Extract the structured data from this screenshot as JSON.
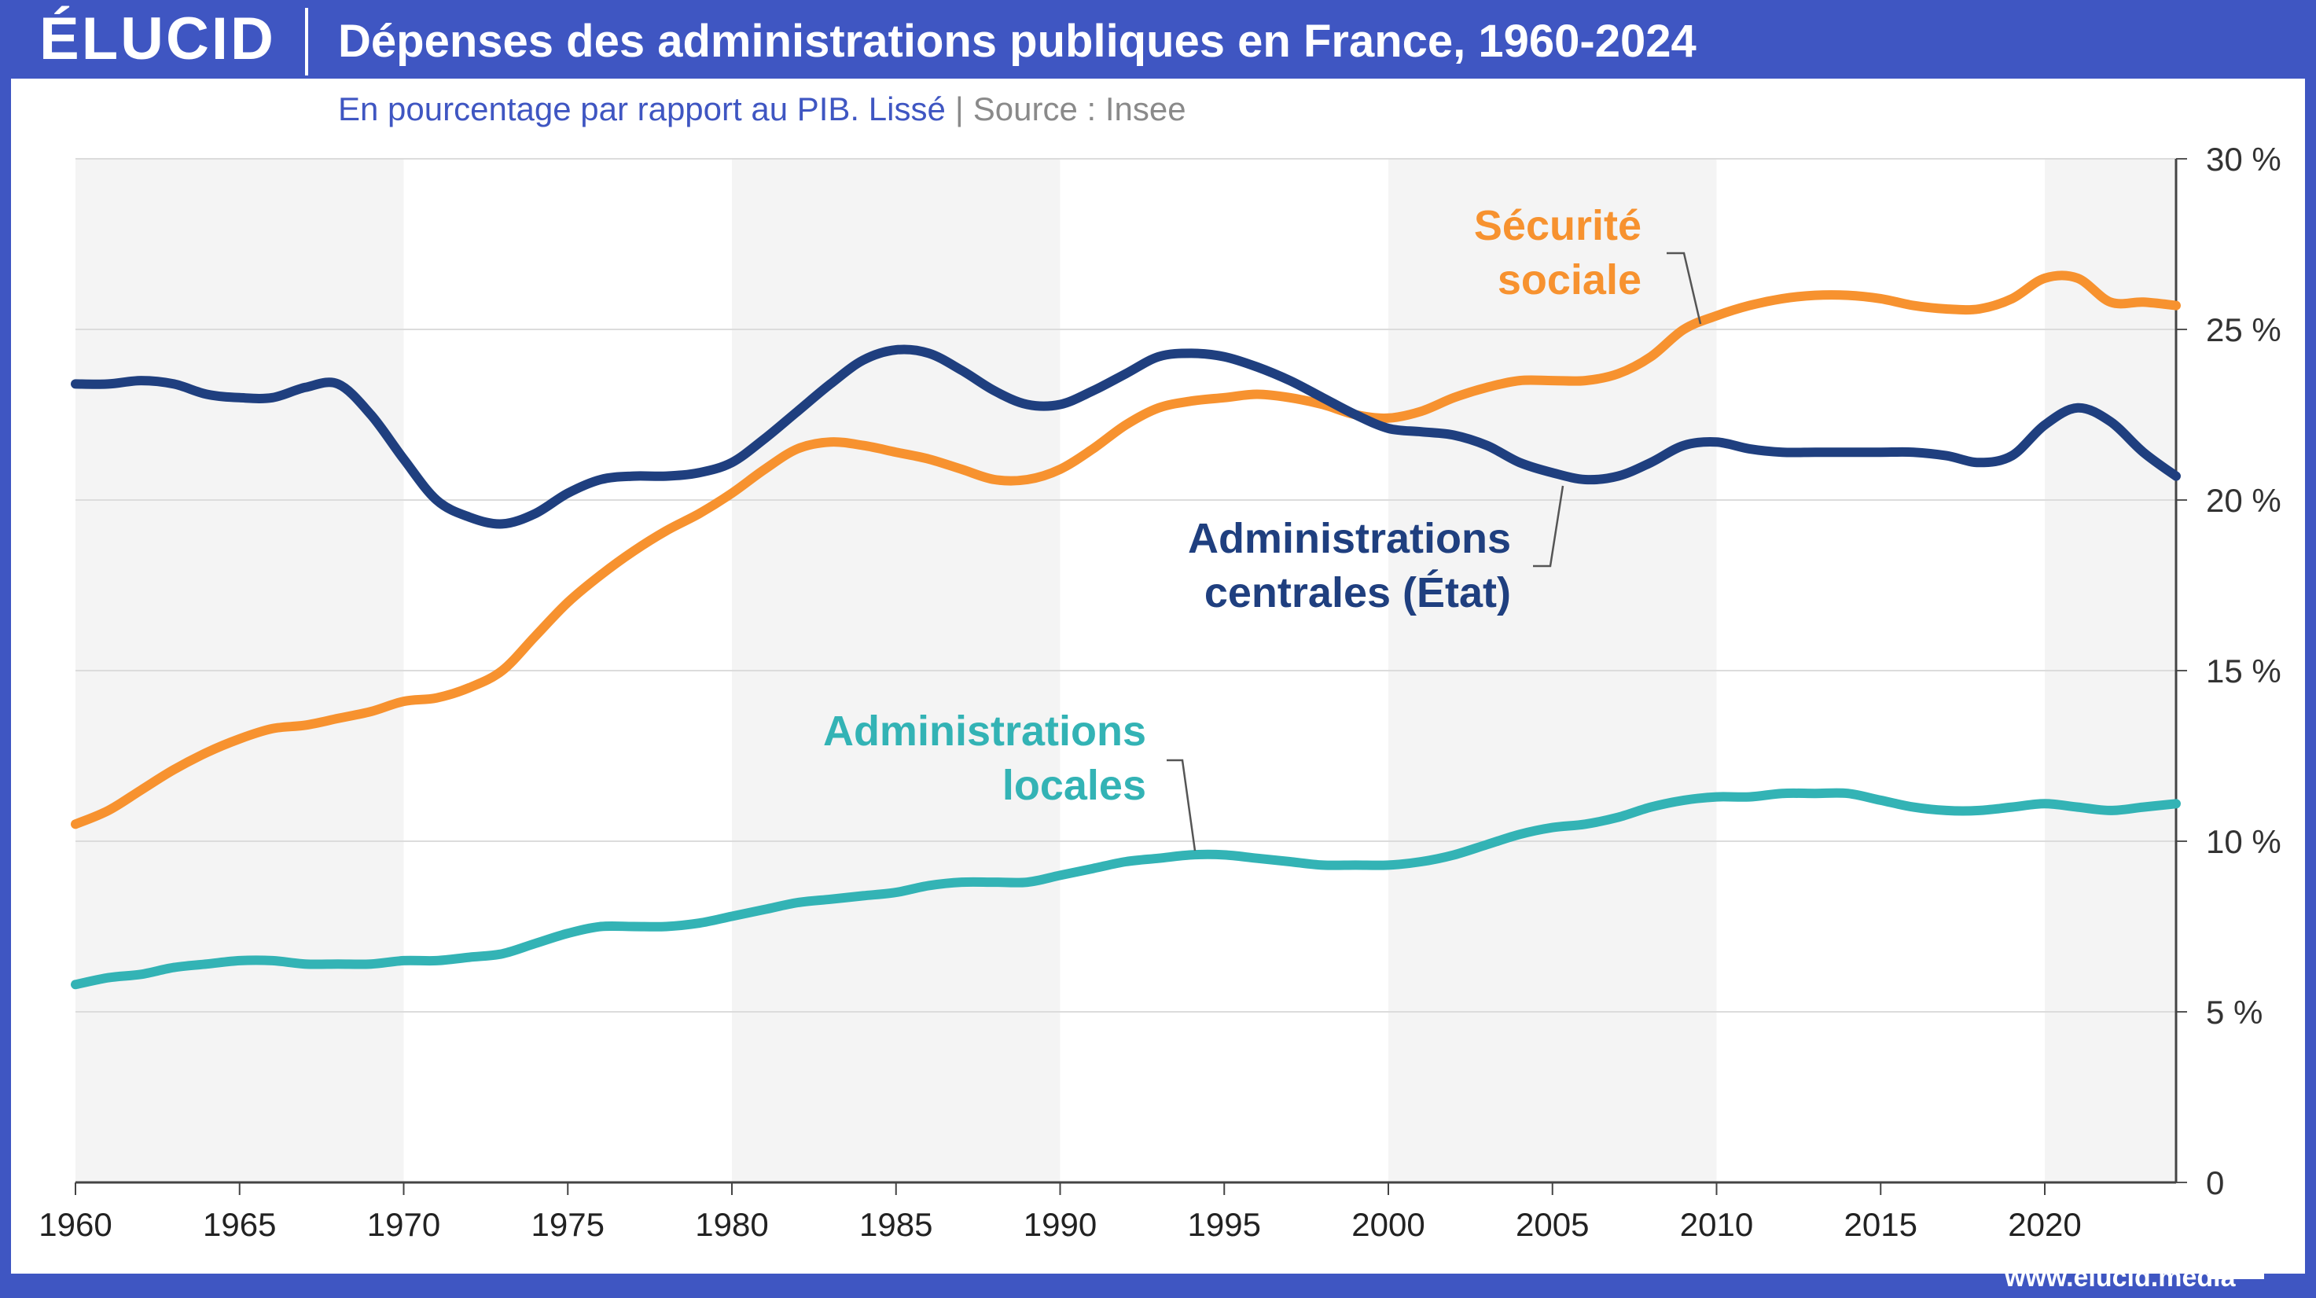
{
  "header": {
    "logo": "ÉLUCID",
    "title": "Dépenses des administrations publiques en France, 1960-2024"
  },
  "subtitle": {
    "main": "En pourcentage par rapport au PIB. Lissé",
    "separator": "|",
    "source": "Source : Insee"
  },
  "footer": {
    "url": "www.elucid.media"
  },
  "colors": {
    "header_bg": "#3f56c2",
    "securite_sociale": "#f7922f",
    "administrations_centrales": "#1f3f7f",
    "administrations_locales": "#33b3b5",
    "band": "#f4f4f4",
    "grid": "#dcdcdc"
  },
  "chart_data": {
    "type": "line",
    "x_ticks": [
      1960,
      1965,
      1970,
      1975,
      1980,
      1985,
      1990,
      1995,
      2000,
      2005,
      2010,
      2015,
      2020
    ],
    "x_tick_labels": [
      "1960",
      "1965",
      "1970",
      "1975",
      "1980",
      "1985",
      "1990",
      "1995",
      "2000",
      "2005",
      "2010",
      "2015",
      "2020"
    ],
    "xlim": [
      1960,
      2024
    ],
    "ylim": [
      0,
      30
    ],
    "y_ticks": [
      0,
      5,
      10,
      15,
      20,
      25,
      30
    ],
    "y_tick_labels": [
      "0",
      "5 %",
      "10 %",
      "15 %",
      "20 %",
      "25 %",
      "30 %"
    ],
    "y_axis_side": "right",
    "shaded_bands": [
      [
        1960,
        1970
      ],
      [
        1980,
        1990
      ],
      [
        2000,
        2010
      ],
      [
        2020,
        2024
      ]
    ],
    "grid": true,
    "series": [
      {
        "key": "securite_sociale",
        "label_lines": [
          "Sécurité",
          "sociale"
        ],
        "x": [
          1960,
          1961,
          1962,
          1963,
          1964,
          1965,
          1966,
          1967,
          1968,
          1969,
          1970,
          1971,
          1972,
          1973,
          1974,
          1975,
          1976,
          1977,
          1978,
          1979,
          1980,
          1981,
          1982,
          1983,
          1984,
          1985,
          1986,
          1987,
          1988,
          1989,
          1990,
          1991,
          1992,
          1993,
          1994,
          1995,
          1996,
          1997,
          1998,
          1999,
          2000,
          2001,
          2002,
          2003,
          2004,
          2005,
          2006,
          2007,
          2008,
          2009,
          2010,
          2011,
          2012,
          2013,
          2014,
          2015,
          2016,
          2017,
          2018,
          2019,
          2020,
          2021,
          2022,
          2023,
          2024
        ],
        "values": [
          10.5,
          10.9,
          11.5,
          12.1,
          12.6,
          13.0,
          13.3,
          13.4,
          13.6,
          13.8,
          14.1,
          14.2,
          14.5,
          15.0,
          16.0,
          17.0,
          17.8,
          18.5,
          19.1,
          19.6,
          20.2,
          20.9,
          21.5,
          21.7,
          21.6,
          21.4,
          21.2,
          20.9,
          20.6,
          20.6,
          20.9,
          21.5,
          22.2,
          22.7,
          22.9,
          23.0,
          23.1,
          23.0,
          22.8,
          22.5,
          22.4,
          22.6,
          23.0,
          23.3,
          23.5,
          23.5,
          23.5,
          23.7,
          24.2,
          25.0,
          25.4,
          25.7,
          25.9,
          26.0,
          26.0,
          25.9,
          25.7,
          25.6,
          25.6,
          25.9,
          26.5,
          26.5,
          25.8,
          25.8,
          25.7
        ]
      },
      {
        "key": "administrations_centrales",
        "label_lines": [
          "Administrations",
          "centrales (État)"
        ],
        "x": [
          1960,
          1961,
          1962,
          1963,
          1964,
          1965,
          1966,
          1967,
          1968,
          1969,
          1970,
          1971,
          1972,
          1973,
          1974,
          1975,
          1976,
          1977,
          1978,
          1979,
          1980,
          1981,
          1982,
          1983,
          1984,
          1985,
          1986,
          1987,
          1988,
          1989,
          1990,
          1991,
          1992,
          1993,
          1994,
          1995,
          1996,
          1997,
          1998,
          1999,
          2000,
          2001,
          2002,
          2003,
          2004,
          2005,
          2006,
          2007,
          2008,
          2009,
          2010,
          2011,
          2012,
          2013,
          2014,
          2015,
          2016,
          2017,
          2018,
          2019,
          2020,
          2021,
          2022,
          2023,
          2024
        ],
        "values": [
          23.4,
          23.4,
          23.5,
          23.4,
          23.1,
          23.0,
          23.0,
          23.3,
          23.4,
          22.5,
          21.2,
          20.0,
          19.5,
          19.3,
          19.6,
          20.2,
          20.6,
          20.7,
          20.7,
          20.8,
          21.1,
          21.8,
          22.6,
          23.4,
          24.1,
          24.4,
          24.3,
          23.8,
          23.2,
          22.8,
          22.8,
          23.2,
          23.7,
          24.2,
          24.3,
          24.2,
          23.9,
          23.5,
          23.0,
          22.5,
          22.1,
          22.0,
          21.9,
          21.6,
          21.1,
          20.8,
          20.6,
          20.7,
          21.1,
          21.6,
          21.7,
          21.5,
          21.4,
          21.4,
          21.4,
          21.4,
          21.4,
          21.3,
          21.1,
          21.3,
          22.2,
          22.7,
          22.3,
          21.4,
          20.7
        ]
      },
      {
        "key": "administrations_locales",
        "label_lines": [
          "Administrations",
          "locales"
        ],
        "x": [
          1960,
          1961,
          1962,
          1963,
          1964,
          1965,
          1966,
          1967,
          1968,
          1969,
          1970,
          1971,
          1972,
          1973,
          1974,
          1975,
          1976,
          1977,
          1978,
          1979,
          1980,
          1981,
          1982,
          1983,
          1984,
          1985,
          1986,
          1987,
          1988,
          1989,
          1990,
          1991,
          1992,
          1993,
          1994,
          1995,
          1996,
          1997,
          1998,
          1999,
          2000,
          2001,
          2002,
          2003,
          2004,
          2005,
          2006,
          2007,
          2008,
          2009,
          2010,
          2011,
          2012,
          2013,
          2014,
          2015,
          2016,
          2017,
          2018,
          2019,
          2020,
          2021,
          2022,
          2023,
          2024
        ],
        "values": [
          5.8,
          6.0,
          6.1,
          6.3,
          6.4,
          6.5,
          6.5,
          6.4,
          6.4,
          6.4,
          6.5,
          6.5,
          6.6,
          6.7,
          7.0,
          7.3,
          7.5,
          7.5,
          7.5,
          7.6,
          7.8,
          8.0,
          8.2,
          8.3,
          8.4,
          8.5,
          8.7,
          8.8,
          8.8,
          8.8,
          9.0,
          9.2,
          9.4,
          9.5,
          9.6,
          9.6,
          9.5,
          9.4,
          9.3,
          9.3,
          9.3,
          9.4,
          9.6,
          9.9,
          10.2,
          10.4,
          10.5,
          10.7,
          11.0,
          11.2,
          11.3,
          11.3,
          11.4,
          11.4,
          11.4,
          11.2,
          11.0,
          10.9,
          10.9,
          11.0,
          11.1,
          11.0,
          10.9,
          11.0,
          11.1
        ]
      }
    ]
  }
}
